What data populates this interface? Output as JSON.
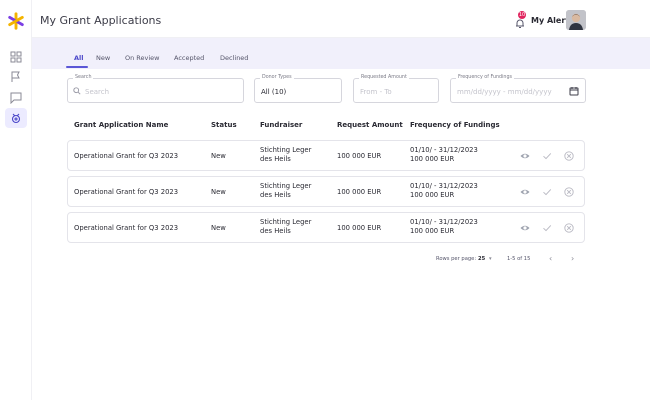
{
  "header": {
    "title": "My Grant Applications",
    "alerts_label": "My Alerts",
    "alerts_count": "10"
  },
  "tabs": [
    {
      "label": "All"
    },
    {
      "label": "New"
    },
    {
      "label": "On Review"
    },
    {
      "label": "Accepted"
    },
    {
      "label": "Declined"
    }
  ],
  "filters": {
    "search": {
      "label": "Search",
      "placeholder": "Search"
    },
    "donor_types": {
      "label": "Donor Types",
      "value": "All (10)"
    },
    "requested_amount": {
      "label": "Requested Amount",
      "placeholder": "From - To"
    },
    "frequency": {
      "label": "Frequency of Fundings",
      "placeholder": "mm/dd/yyyy - mm/dd/yyyy"
    }
  },
  "table": {
    "columns": [
      "Grant Application Name",
      "Status",
      "Fundraiser",
      "Request Amount",
      "Frequency of Fundings"
    ],
    "rows": [
      {
        "name": "Operational Grant for Q3 2023",
        "status": "New",
        "fundraiser_1": "Stichting Leger",
        "fundraiser_2": "des Heils",
        "amount": "100 000 EUR",
        "freq_1": "01/10/ - 31/12/2023",
        "freq_2": "100 000 EUR"
      },
      {
        "name": "Operational Grant for Q3 2023",
        "status": "New",
        "fundraiser_1": "Stichting Leger",
        "fundraiser_2": "des Heils",
        "amount": "100 000 EUR",
        "freq_1": "01/10/ - 31/12/2023",
        "freq_2": "100 000 EUR"
      },
      {
        "name": "Operational Grant for Q3 2023",
        "status": "New",
        "fundraiser_1": "Stichting Leger",
        "fundraiser_2": "des Heils",
        "amount": "100 000 EUR",
        "freq_1": "01/10/ - 31/12/2023",
        "freq_2": "100 000 EUR"
      }
    ]
  },
  "pagination": {
    "rows_per_page_label": "Rows per page:",
    "rows_per_page_value": "25",
    "range": "1-5 of 15",
    "prev": "‹",
    "next": "›"
  },
  "colors": {
    "accent": "#5b57d6",
    "brand_star": "#7b3fe4",
    "tabs_band": "#f1f0fb"
  }
}
